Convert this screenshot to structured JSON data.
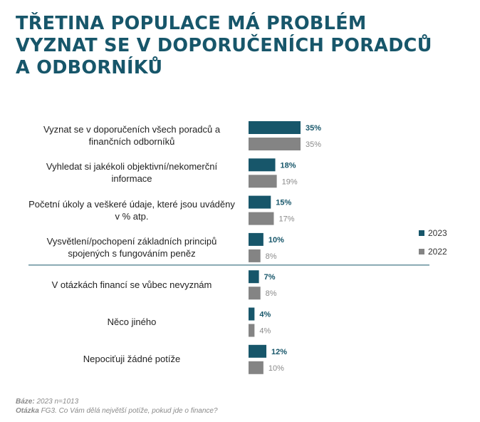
{
  "title_lines": [
    "TŘETINA POPULACE MÁ PROBLÉM",
    "VYZNAT SE V DOPORUČENÍCH PORADCŮ",
    "A ODBORNÍKŮ"
  ],
  "colors": {
    "title": "#17566a",
    "series_2023": "#17566a",
    "series_2022": "#848484",
    "divider": "#17566a"
  },
  "chart_data": {
    "type": "bar",
    "orientation": "horizontal",
    "categories": [
      "Vyznat se v doporučeních všech poradců a finančních odborníků",
      "Vyhledat si jakékoli objektivní/nekomerční informace",
      "Početní úkoly a veškeré údaje, které jsou uváděny v % atp.",
      "Vysvětlení/pochopení základních principů spojených s fungováním peněz",
      "V otázkách financí se vůbec nevyznám",
      "Něco jiného",
      "Nepociťuji žádné potíže"
    ],
    "category_lines": [
      [
        "Vyznat se v doporučeních všech poradců a",
        "finančních odborníků"
      ],
      [
        "Vyhledat si jakékoli objektivní/nekomerční",
        "informace"
      ],
      [
        "Početní úkoly a veškeré údaje, které jsou uváděny",
        "v % atp."
      ],
      [
        "Vysvětlení/pochopení základních principů",
        "spojených s fungováním peněz"
      ],
      [
        "V otázkách financí se vůbec nevyznám"
      ],
      [
        "Něco jiného"
      ],
      [
        "Nepociťuji žádné potíže"
      ]
    ],
    "series": [
      {
        "name": "2023",
        "values": [
          35,
          18,
          15,
          10,
          7,
          4,
          12
        ],
        "labels": [
          "35%",
          "18%",
          "15%",
          "10%",
          "7%",
          "4%",
          "12%"
        ]
      },
      {
        "name": "2022",
        "values": [
          35,
          19,
          17,
          8,
          8,
          4,
          10
        ],
        "labels": [
          "35%",
          "19%",
          "17%",
          "8%",
          "8%",
          "4%",
          "10%"
        ]
      }
    ],
    "legend_position": "right",
    "divider_after_category": 3,
    "grid": false
  },
  "footnotes": {
    "base_label": "Báze:",
    "base_text": " 2023 n=1013",
    "question_label": "Otázka",
    "question_text": " FG3. Co Vám dělá největší potíže, pokud jde o finance?"
  }
}
